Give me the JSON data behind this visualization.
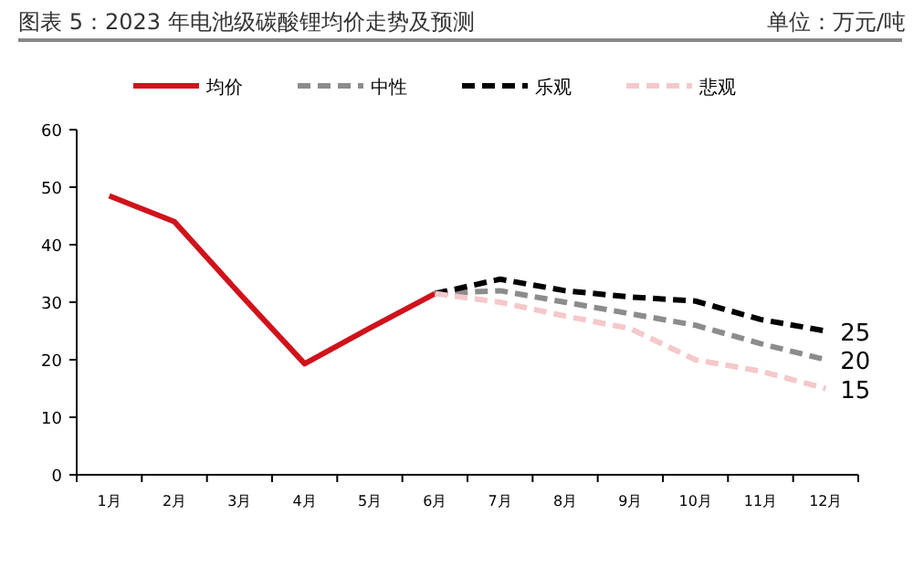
{
  "chart_data": {
    "type": "line",
    "title": "图表 5：2023 年电池级碳酸锂均价走势及预测",
    "subtitle": "单位：万元/吨",
    "categories": [
      "1月",
      "2月",
      "3月",
      "4月",
      "5月",
      "6月",
      "7月",
      "8月",
      "9月",
      "10月",
      "11月",
      "12月"
    ],
    "series": [
      {
        "name": "均价",
        "color": "#d0121b",
        "line_style": "solid",
        "values": [
          48.5,
          44,
          31.5,
          19.3,
          25.5,
          31.5,
          null,
          null,
          null,
          null,
          null,
          null
        ]
      },
      {
        "name": "中性",
        "color": "#8c8c8c",
        "line_style": "dashed",
        "values": [
          null,
          null,
          null,
          null,
          null,
          31.5,
          32,
          30,
          28,
          26,
          22.8,
          20
        ],
        "value_labels": [
          null,
          null,
          null,
          null,
          null,
          null,
          null,
          null,
          null,
          null,
          null,
          "20"
        ]
      },
      {
        "name": "乐观",
        "color": "#000000",
        "line_style": "dashed",
        "values": [
          null,
          null,
          null,
          null,
          null,
          31.5,
          34,
          32,
          30.9,
          30.2,
          27,
          25
        ],
        "value_labels": [
          null,
          null,
          null,
          null,
          null,
          null,
          null,
          null,
          null,
          null,
          null,
          "25"
        ]
      },
      {
        "name": "悲观",
        "color": "#f5c8ca",
        "line_style": "dashed",
        "values": [
          null,
          null,
          null,
          null,
          null,
          31.5,
          30,
          27.6,
          25.4,
          20,
          18,
          15
        ],
        "value_labels": [
          null,
          null,
          null,
          null,
          null,
          null,
          null,
          null,
          null,
          null,
          null,
          "15"
        ]
      }
    ],
    "ylim": [
      0,
      60
    ],
    "yticks": [
      0,
      10,
      20,
      30,
      40,
      50,
      60
    ],
    "grid": false,
    "legend": "top",
    "marker": "none"
  }
}
